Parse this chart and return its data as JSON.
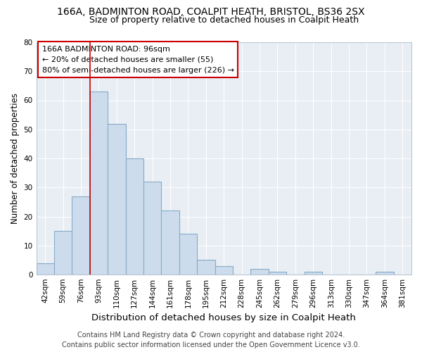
{
  "title1": "166A, BADMINTON ROAD, COALPIT HEATH, BRISTOL, BS36 2SX",
  "title2": "Size of property relative to detached houses in Coalpit Heath",
  "xlabel": "Distribution of detached houses by size in Coalpit Heath",
  "ylabel": "Number of detached properties",
  "categories": [
    "42sqm",
    "59sqm",
    "76sqm",
    "93sqm",
    "110sqm",
    "127sqm",
    "144sqm",
    "161sqm",
    "178sqm",
    "195sqm",
    "212sqm",
    "228sqm",
    "245sqm",
    "262sqm",
    "279sqm",
    "296sqm",
    "313sqm",
    "330sqm",
    "347sqm",
    "364sqm",
    "381sqm"
  ],
  "values": [
    4,
    15,
    27,
    63,
    52,
    40,
    32,
    22,
    14,
    5,
    3,
    0,
    2,
    1,
    0,
    1,
    0,
    0,
    0,
    1,
    0
  ],
  "bar_color": "#ccdcec",
  "bar_edge_color": "#88aac8",
  "red_line_index": 3,
  "ylim": [
    0,
    80
  ],
  "yticks": [
    0,
    10,
    20,
    30,
    40,
    50,
    60,
    70,
    80
  ],
  "annotation_title": "166A BADMINTON ROAD: 96sqm",
  "annotation_line1": "← 20% of detached houses are smaller (55)",
  "annotation_line2": "80% of semi-detached houses are larger (226) →",
  "annotation_box_facecolor": "#ffffff",
  "annotation_box_edgecolor": "#cc0000",
  "red_line_color": "#cc0000",
  "footer1": "Contains HM Land Registry data © Crown copyright and database right 2024.",
  "footer2": "Contains public sector information licensed under the Open Government Licence v3.0.",
  "title1_fontsize": 10,
  "title2_fontsize": 9,
  "xlabel_fontsize": 9.5,
  "ylabel_fontsize": 8.5,
  "tick_fontsize": 7.5,
  "footer_fontsize": 7,
  "annotation_fontsize": 8,
  "grid_color": "#d0dce8",
  "bg_color": "#e8eef4"
}
